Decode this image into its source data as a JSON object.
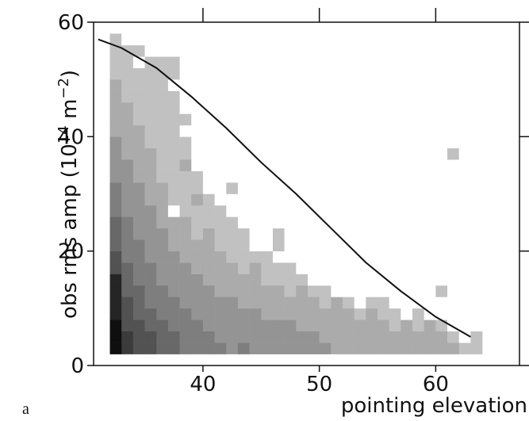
{
  "chart_data": {
    "type": "heatmap",
    "panel_label": "a",
    "xlabel": "pointing elevation",
    "ylabel": [
      "obs rms amp (10",
      "14",
      " m",
      "−2",
      ")"
    ],
    "xlim": [
      30.6,
      67.2
    ],
    "ylim": [
      0,
      60
    ],
    "xticks": [
      40,
      50,
      60
    ],
    "yticks": [
      0,
      20,
      40,
      60
    ],
    "xbins": [
      32,
      33,
      34,
      35,
      36,
      37,
      38,
      39,
      40,
      41,
      42,
      43,
      44,
      45,
      46,
      47,
      48,
      49,
      50,
      51,
      52,
      53,
      54,
      55,
      56,
      57,
      58,
      59,
      60,
      61,
      62,
      63,
      64
    ],
    "ybins": [
      2,
      4,
      6,
      8,
      10,
      12,
      14,
      16,
      18,
      20,
      22,
      24,
      26,
      28,
      30,
      32,
      34,
      36,
      38,
      40,
      42,
      44,
      46,
      48,
      50,
      52,
      54,
      56,
      58
    ],
    "z": [
      [
        9,
        7,
        6,
        6,
        5,
        5,
        4,
        4,
        4,
        4,
        3,
        4,
        3,
        3,
        3,
        3,
        3,
        3,
        3,
        2,
        2,
        2,
        2,
        2,
        2,
        2,
        2,
        2,
        2,
        2,
        1,
        1
      ],
      [
        9,
        7,
        6,
        6,
        5,
        5,
        4,
        4,
        4,
        3,
        3,
        3,
        3,
        3,
        3,
        3,
        3,
        3,
        2,
        2,
        2,
        2,
        2,
        2,
        2,
        2,
        2,
        2,
        2,
        1,
        0,
        1
      ],
      [
        9,
        6,
        6,
        5,
        5,
        4,
        4,
        4,
        3,
        3,
        3,
        3,
        3,
        3,
        3,
        3,
        2,
        2,
        2,
        2,
        2,
        2,
        2,
        2,
        1,
        2,
        1,
        2,
        1,
        0,
        0,
        0
      ],
      [
        8,
        6,
        5,
        5,
        4,
        4,
        4,
        3,
        3,
        3,
        3,
        3,
        3,
        2,
        2,
        2,
        2,
        2,
        2,
        2,
        2,
        1,
        2,
        1,
        1,
        0,
        1,
        0,
        0,
        0,
        0,
        0
      ],
      [
        8,
        6,
        5,
        4,
        4,
        4,
        3,
        3,
        3,
        3,
        3,
        2,
        2,
        2,
        2,
        2,
        2,
        2,
        1,
        2,
        1,
        0,
        1,
        1,
        0,
        0,
        0,
        0,
        0,
        0,
        0,
        0
      ],
      [
        8,
        5,
        5,
        4,
        4,
        3,
        3,
        3,
        3,
        2,
        2,
        2,
        2,
        2,
        2,
        1,
        2,
        1,
        1,
        0,
        0,
        0,
        0,
        0,
        0,
        0,
        0,
        0,
        1,
        0,
        0,
        0
      ],
      [
        8,
        5,
        4,
        4,
        3,
        3,
        3,
        3,
        2,
        2,
        2,
        2,
        2,
        1,
        1,
        1,
        1,
        0,
        0,
        0,
        0,
        0,
        0,
        0,
        0,
        0,
        0,
        0,
        0,
        0,
        0,
        0
      ],
      [
        6,
        5,
        4,
        4,
        3,
        3,
        3,
        2,
        2,
        2,
        2,
        1,
        2,
        1,
        1,
        1,
        0,
        0,
        0,
        0,
        0,
        0,
        0,
        0,
        0,
        0,
        0,
        0,
        0,
        0,
        0,
        0
      ],
      [
        6,
        4,
        4,
        3,
        3,
        3,
        2,
        2,
        2,
        2,
        1,
        1,
        1,
        1,
        0,
        0,
        0,
        0,
        0,
        0,
        0,
        0,
        0,
        0,
        0,
        0,
        0,
        0,
        0,
        0,
        0,
        0
      ],
      [
        5,
        4,
        4,
        3,
        3,
        2,
        2,
        2,
        2,
        1,
        1,
        1,
        0,
        0,
        1,
        0,
        0,
        0,
        0,
        0,
        0,
        0,
        0,
        0,
        0,
        0,
        0,
        0,
        0,
        0,
        0,
        0
      ],
      [
        5,
        4,
        3,
        3,
        3,
        2,
        2,
        1,
        2,
        1,
        1,
        1,
        0,
        0,
        1,
        0,
        0,
        0,
        0,
        0,
        0,
        0,
        0,
        0,
        0,
        0,
        0,
        0,
        0,
        0,
        0,
        0
      ],
      [
        5,
        4,
        3,
        3,
        2,
        2,
        2,
        1,
        1,
        1,
        1,
        0,
        0,
        0,
        0,
        0,
        0,
        0,
        0,
        0,
        0,
        0,
        0,
        0,
        0,
        0,
        0,
        0,
        0,
        0,
        0,
        0
      ],
      [
        4,
        3,
        3,
        3,
        2,
        0,
        1,
        1,
        1,
        1,
        0,
        0,
        0,
        0,
        0,
        0,
        0,
        0,
        0,
        0,
        0,
        0,
        0,
        0,
        0,
        0,
        0,
        0,
        0,
        0,
        0,
        0
      ],
      [
        4,
        3,
        3,
        2,
        2,
        1,
        1,
        2,
        1,
        0,
        0,
        0,
        0,
        0,
        0,
        0,
        0,
        0,
        0,
        0,
        0,
        0,
        0,
        0,
        0,
        0,
        0,
        0,
        0,
        0,
        0,
        0
      ],
      [
        4,
        3,
        3,
        2,
        2,
        1,
        1,
        1,
        0,
        0,
        1,
        0,
        0,
        0,
        0,
        0,
        0,
        0,
        0,
        0,
        0,
        0,
        0,
        0,
        0,
        0,
        0,
        0,
        0,
        0,
        0,
        0
      ],
      [
        3,
        3,
        2,
        2,
        1,
        1,
        1,
        1,
        0,
        0,
        0,
        0,
        0,
        0,
        0,
        0,
        0,
        0,
        0,
        0,
        0,
        0,
        0,
        0,
        0,
        0,
        0,
        0,
        0,
        0,
        0,
        0
      ],
      [
        3,
        3,
        2,
        2,
        1,
        1,
        2,
        0,
        0,
        0,
        0,
        0,
        0,
        0,
        0,
        0,
        0,
        0,
        0,
        0,
        0,
        0,
        0,
        0,
        0,
        0,
        0,
        0,
        0,
        0,
        0,
        0
      ],
      [
        3,
        2,
        2,
        2,
        1,
        1,
        1,
        0,
        0,
        0,
        0,
        0,
        0,
        0,
        0,
        0,
        0,
        0,
        0,
        0,
        0,
        0,
        0,
        0,
        0,
        0,
        0,
        0,
        0,
        1,
        0,
        0
      ],
      [
        3,
        2,
        2,
        1,
        1,
        1,
        1,
        0,
        0,
        0,
        0,
        0,
        0,
        0,
        0,
        0,
        0,
        0,
        0,
        0,
        0,
        0,
        0,
        0,
        0,
        0,
        0,
        0,
        0,
        0,
        0,
        0
      ],
      [
        2,
        2,
        2,
        1,
        1,
        1,
        0,
        0,
        0,
        0,
        0,
        0,
        0,
        0,
        0,
        0,
        0,
        0,
        0,
        0,
        0,
        0,
        0,
        0,
        0,
        0,
        0,
        0,
        0,
        0,
        0,
        0
      ],
      [
        2,
        2,
        1,
        1,
        1,
        1,
        1,
        0,
        0,
        0,
        0,
        0,
        0,
        0,
        0,
        0,
        0,
        0,
        0,
        0,
        0,
        0,
        0,
        0,
        0,
        0,
        0,
        0,
        0,
        0,
        0,
        0
      ],
      [
        2,
        2,
        1,
        1,
        1,
        1,
        0,
        0,
        0,
        0,
        0,
        0,
        0,
        0,
        0,
        0,
        0,
        0,
        0,
        0,
        0,
        0,
        0,
        0,
        0,
        0,
        0,
        0,
        0,
        0,
        0,
        0
      ],
      [
        2,
        1,
        1,
        1,
        1,
        1,
        0,
        0,
        0,
        0,
        0,
        0,
        0,
        0,
        0,
        0,
        0,
        0,
        0,
        0,
        0,
        0,
        0,
        0,
        0,
        0,
        0,
        0,
        0,
        0,
        0,
        0
      ],
      [
        2,
        1,
        1,
        1,
        1,
        0,
        0,
        0,
        0,
        0,
        0,
        0,
        0,
        0,
        0,
        0,
        0,
        0,
        0,
        0,
        0,
        0,
        0,
        0,
        0,
        0,
        0,
        0,
        0,
        0,
        0,
        0
      ],
      [
        1,
        1,
        1,
        1,
        1,
        1,
        0,
        0,
        0,
        0,
        0,
        0,
        0,
        0,
        0,
        0,
        0,
        0,
        0,
        0,
        0,
        0,
        0,
        0,
        0,
        0,
        0,
        0,
        0,
        0,
        0,
        0
      ],
      [
        1,
        1,
        0,
        1,
        1,
        1,
        0,
        0,
        0,
        0,
        0,
        0,
        0,
        0,
        0,
        0,
        0,
        0,
        0,
        0,
        0,
        0,
        0,
        0,
        0,
        0,
        0,
        0,
        0,
        0,
        0,
        0
      ],
      [
        1,
        1,
        1,
        0,
        0,
        0,
        0,
        0,
        0,
        0,
        0,
        0,
        0,
        0,
        0,
        0,
        0,
        0,
        0,
        0,
        0,
        0,
        0,
        0,
        0,
        0,
        0,
        0,
        0,
        0,
        0,
        0
      ],
      [
        1,
        0,
        0,
        0,
        0,
        0,
        0,
        0,
        0,
        0,
        0,
        0,
        0,
        0,
        0,
        0,
        0,
        0,
        0,
        0,
        0,
        0,
        0,
        0,
        0,
        0,
        0,
        0,
        0,
        0,
        0,
        0
      ]
    ],
    "line": {
      "color": "#111111",
      "x": [
        31,
        33,
        36,
        39,
        42,
        45,
        48,
        51,
        54,
        57,
        60,
        63
      ],
      "y": [
        57,
        55.5,
        52,
        47,
        41.5,
        35.5,
        30,
        24,
        18,
        13,
        8.5,
        5
      ]
    }
  }
}
